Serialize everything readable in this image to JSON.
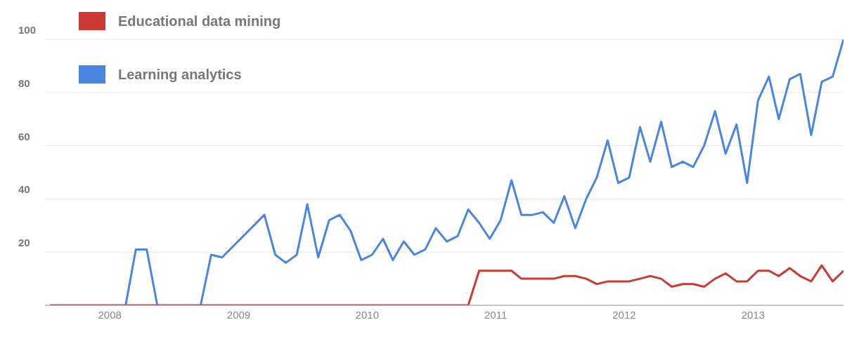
{
  "chart_data": {
    "type": "line",
    "legend": "top left",
    "grid": "y",
    "marker": "none",
    "line_style": "solid",
    "xlim": [
      "2007-07-01",
      "2013-09-15"
    ],
    "xticks": [
      "2008",
      "2009",
      "2010",
      "2011",
      "2012",
      "2013"
    ],
    "ylim": [
      0,
      100
    ],
    "yticks": [
      20,
      40,
      60,
      80,
      100
    ],
    "series": [
      {
        "name": "Educational data mining",
        "color": "#cc3b33",
        "x": [
          "2007-07-15",
          "2007-08-15",
          "2007-09-15",
          "2007-10-15",
          "2007-11-15",
          "2007-12-15",
          "2008-01-15",
          "2008-02-15",
          "2008-03-15",
          "2008-04-15",
          "2008-05-15",
          "2008-06-15",
          "2008-07-15",
          "2008-08-15",
          "2008-09-15",
          "2008-10-15",
          "2008-11-15",
          "2008-12-15",
          "2009-01-15",
          "2009-02-15",
          "2009-03-15",
          "2009-04-15",
          "2009-05-15",
          "2009-06-15",
          "2009-07-15",
          "2009-08-15",
          "2009-09-15",
          "2009-10-15",
          "2009-11-15",
          "2009-12-15",
          "2010-01-15",
          "2010-02-15",
          "2010-03-15",
          "2010-04-15",
          "2010-05-15",
          "2010-06-15",
          "2010-07-15",
          "2010-08-15",
          "2010-09-15",
          "2010-10-15",
          "2010-11-15",
          "2010-12-15",
          "2011-01-15",
          "2011-02-15",
          "2011-03-15",
          "2011-04-15",
          "2011-05-15",
          "2011-06-15",
          "2011-07-15",
          "2011-08-15",
          "2011-09-15",
          "2011-10-15",
          "2011-11-15",
          "2011-12-15",
          "2012-01-15",
          "2012-02-15",
          "2012-03-15",
          "2012-04-15",
          "2012-05-15",
          "2012-06-15",
          "2012-07-15",
          "2012-08-15",
          "2012-09-15",
          "2012-10-15",
          "2012-11-15",
          "2012-12-15",
          "2013-01-15",
          "2013-02-15",
          "2013-03-15",
          "2013-04-15",
          "2013-05-15",
          "2013-06-15",
          "2013-07-15",
          "2013-08-15",
          "2013-09-15"
        ],
        "values": [
          0,
          0,
          0,
          0,
          0,
          0,
          0,
          0,
          0,
          0,
          0,
          0,
          0,
          0,
          0,
          0,
          0,
          0,
          0,
          0,
          0,
          0,
          0,
          0,
          0,
          0,
          0,
          0,
          0,
          0,
          0,
          0,
          0,
          0,
          0,
          0,
          0,
          0,
          0,
          0,
          13,
          13,
          13,
          13,
          10,
          10,
          10,
          10,
          11,
          11,
          10,
          8,
          9,
          9,
          9,
          10,
          11,
          10,
          7,
          8,
          8,
          7,
          10,
          12,
          9,
          9,
          13,
          13,
          11,
          14,
          11,
          9,
          15,
          9,
          13
        ]
      },
      {
        "name": "Learning analytics",
        "color": "#4a86e0",
        "x": [
          "2008-02-15",
          "2008-03-15",
          "2008-04-15",
          "2008-05-15",
          "2008-06-15",
          "2008-07-15",
          "2008-08-15",
          "2008-09-15",
          "2008-10-15",
          "2008-11-15",
          "2009-03-15",
          "2009-04-15",
          "2009-05-15",
          "2009-06-15",
          "2009-07-15",
          "2009-08-15",
          "2009-09-15",
          "2009-10-15",
          "2009-11-15",
          "2009-12-15",
          "2010-01-15",
          "2010-02-15",
          "2010-03-15",
          "2010-04-15",
          "2010-05-15",
          "2010-06-15",
          "2010-07-15",
          "2010-08-15",
          "2010-09-15",
          "2010-10-15",
          "2010-11-15",
          "2010-12-15",
          "2011-01-15",
          "2011-02-15",
          "2011-03-15",
          "2011-04-15",
          "2011-05-15",
          "2011-06-15",
          "2011-07-15",
          "2011-08-15",
          "2011-09-15",
          "2011-10-15",
          "2011-11-15",
          "2011-12-15",
          "2012-01-15",
          "2012-02-15",
          "2012-03-15",
          "2012-04-15",
          "2012-05-15",
          "2012-06-15",
          "2012-07-15",
          "2012-08-15",
          "2012-09-15",
          "2012-10-15",
          "2012-11-15",
          "2012-12-15",
          "2013-01-15",
          "2013-02-15",
          "2013-03-15",
          "2013-04-15",
          "2013-05-15",
          "2013-06-15",
          "2013-07-15",
          "2013-08-15",
          "2013-09-15"
        ],
        "values": [
          0,
          21,
          21,
          0,
          null,
          null,
          null,
          0,
          19,
          18,
          34,
          19,
          16,
          19,
          38,
          18,
          32,
          34,
          28,
          17,
          19,
          25,
          17,
          24,
          19,
          21,
          29,
          24,
          26,
          36,
          31,
          25,
          32,
          47,
          34,
          34,
          35,
          31,
          41,
          29,
          40,
          48,
          62,
          46,
          48,
          67,
          54,
          69,
          52,
          54,
          52,
          60,
          73,
          57,
          68,
          46,
          77,
          86,
          70,
          85,
          87,
          64,
          84,
          86,
          100
        ]
      }
    ]
  }
}
